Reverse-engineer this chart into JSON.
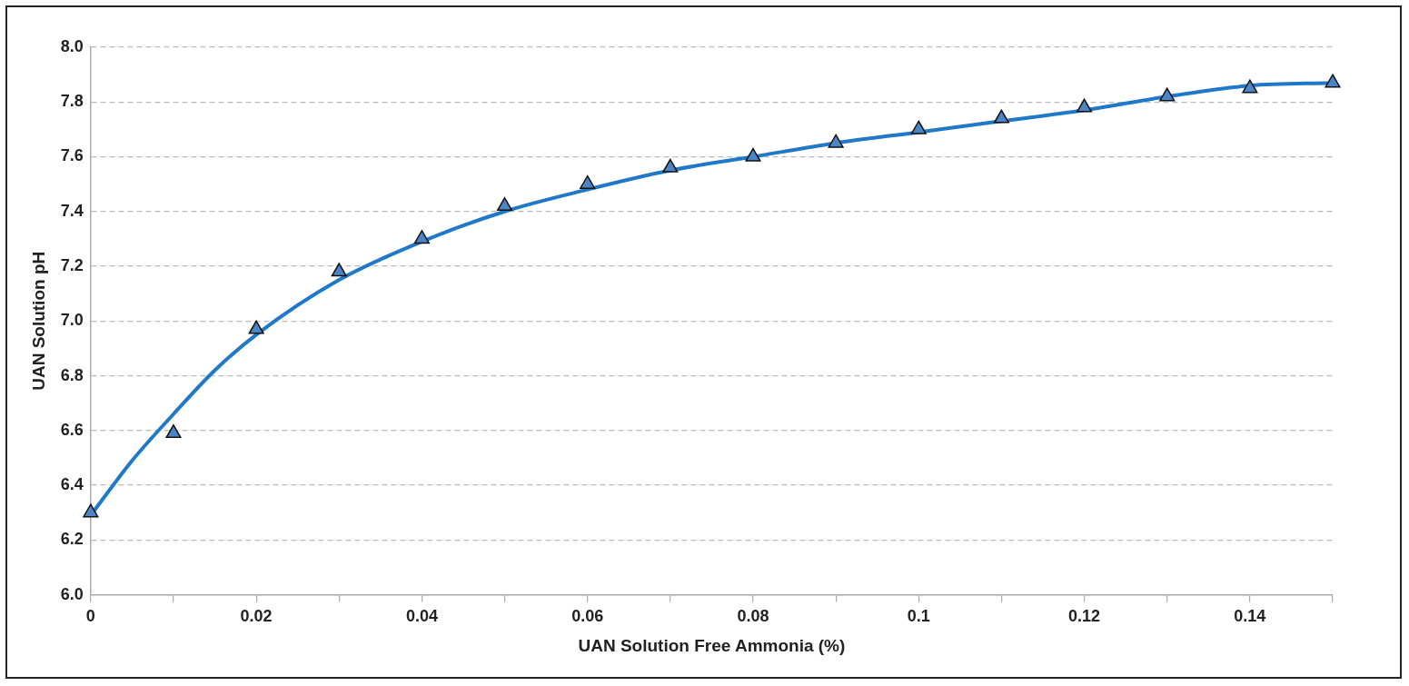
{
  "chart_data": {
    "type": "scatter",
    "xlabel": "UAN Solution Free Ammonia (%)",
    "ylabel": "UAN Solution pH",
    "series": [
      {
        "color": "#4a86c5",
        "x": [
          0,
          0.01,
          0.02,
          0.03,
          0.04,
          0.05,
          0.06,
          0.07,
          0.08,
          0.09,
          0.1,
          0.11,
          0.12,
          0.13,
          0.14,
          0.15
        ],
        "values": [
          6.3,
          6.59,
          6.97,
          7.18,
          7.3,
          7.42,
          7.5,
          7.56,
          7.6,
          7.65,
          7.7,
          7.74,
          7.78,
          7.82,
          7.85,
          7.87
        ]
      },
      {
        "type": "line",
        "marker": "none",
        "color": "#1f78c8",
        "x": [
          0,
          0.005,
          0.01,
          0.015,
          0.02,
          0.03,
          0.04,
          0.05,
          0.06,
          0.07,
          0.08,
          0.09,
          0.1,
          0.11,
          0.12,
          0.13,
          0.14,
          0.15
        ],
        "values": [
          6.29,
          6.49,
          6.66,
          6.82,
          6.95,
          7.15,
          7.29,
          7.4,
          7.48,
          7.55,
          7.6,
          7.65,
          7.69,
          7.73,
          7.77,
          7.82,
          7.86,
          7.87
        ]
      }
    ],
    "xlim": [
      0,
      0.15
    ],
    "xticks": [
      0,
      {
        "value": 0.01,
        "label": null
      },
      0.02,
      {
        "value": 0.03,
        "label": null
      },
      0.04,
      {
        "value": 0.05,
        "label": null
      },
      0.06,
      {
        "value": 0.07,
        "label": null
      },
      0.08,
      {
        "value": 0.09,
        "label": null
      },
      0.1,
      {
        "value": 0.11,
        "label": null
      },
      0.12,
      {
        "value": 0.13,
        "label": null
      },
      0.14,
      {
        "value": 0.15,
        "label": null
      }
    ],
    "ylim": [
      6.0,
      8.0
    ],
    "yticks": [
      {
        "value": 6.0,
        "label": "6.0"
      },
      6.2,
      6.4,
      6.6,
      6.8,
      {
        "value": 7.0,
        "label": "7.0"
      },
      7.2,
      7.4,
      7.6,
      7.8,
      {
        "value": 8.0,
        "label": "8.0"
      }
    ],
    "grid": "y",
    "legend": false,
    "marker": "triangle"
  }
}
